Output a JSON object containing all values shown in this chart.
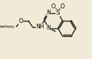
{
  "bg_color": "#f0ead6",
  "bond_color": "#1a1a1a",
  "lw": 1.0,
  "fs": 5.8,
  "figsize": [
    1.31,
    0.85
  ],
  "dpi": 100,
  "xlim": [
    -0.5,
    10.5
  ],
  "ylim": [
    -0.5,
    8.5
  ]
}
